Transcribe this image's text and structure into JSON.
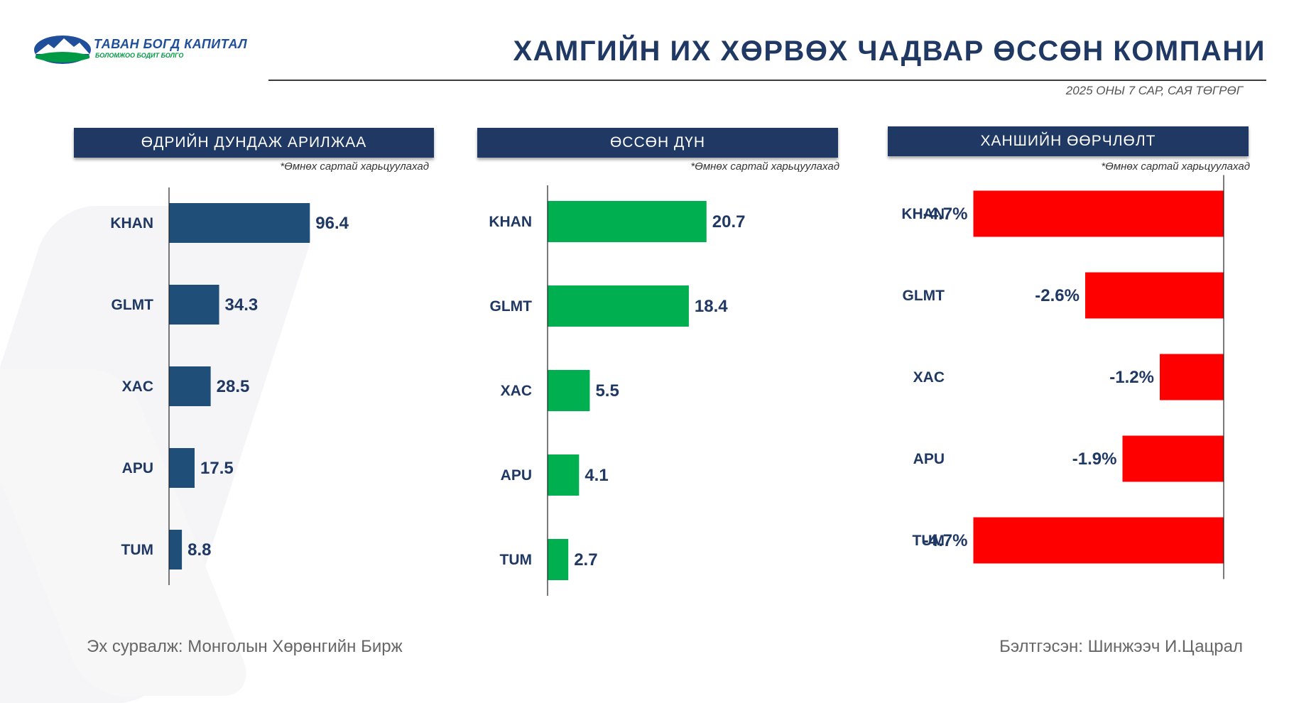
{
  "logo": {
    "name": "ТАВАН БОГД КАПИТАЛ",
    "tagline": "БОЛОМЖОО БОДИТ БОЛГО",
    "colors": {
      "blue": "#1f4e9a",
      "green": "#009a44"
    }
  },
  "title": "ХАМГИЙН ИХ ХӨРВӨХ ЧАДВАР ӨССӨН КОМПАНИ",
  "subtitle": "2025 ОНЫ 7 САР, САЯ ТӨГРӨГ",
  "panels": [
    {
      "header": "ӨДРИЙН ДУНДАЖ АРИЛЖАА",
      "note": "*Өмнөх сартай харьцуулахад"
    },
    {
      "header": "ӨССӨН ДҮН",
      "note": "*Өмнөх сартай харьцуулахад"
    },
    {
      "header": "ХАНШИЙН ӨӨРЧЛӨЛТ",
      "note": "*Өмнөх сартай харьцуулахад"
    }
  ],
  "chart_data": [
    {
      "type": "bar",
      "orientation": "horizontal",
      "categories": [
        "KHAN",
        "GLMT",
        "XAC",
        "APU",
        "TUM"
      ],
      "values": [
        96.4,
        34.3,
        28.5,
        17.5,
        8.8
      ],
      "labels": [
        "96.4",
        "34.3",
        "28.5",
        "17.5",
        "8.8"
      ],
      "color": "#1f4e79",
      "xlim": [
        0,
        175
      ]
    },
    {
      "type": "bar",
      "orientation": "horizontal",
      "categories": [
        "KHAN",
        "GLMT",
        "XAC",
        "APU",
        "TUM"
      ],
      "values": [
        20.7,
        18.4,
        5.5,
        4.1,
        2.7
      ],
      "labels": [
        "20.7",
        "18.4",
        "5.5",
        "4.1",
        "2.7"
      ],
      "color": "#00b050",
      "xlim": [
        0,
        37
      ]
    },
    {
      "type": "bar",
      "orientation": "horizontal",
      "categories": [
        "KHAN",
        "GLMT",
        "XAC",
        "APU",
        "TUM"
      ],
      "values": [
        -4.7,
        -2.6,
        -1.2,
        -1.9,
        -4.7
      ],
      "labels": [
        "-4.7%",
        "-2.6%",
        "-1.2%",
        "-1.9%",
        "-4.7%"
      ],
      "color": "#ff0000",
      "xlim": [
        -5.6,
        0
      ]
    }
  ],
  "footer": {
    "source": "Эх сурвалж: Монголын Хөрөнгийн Бирж",
    "prepared": "Бэлтгэсэн: Шинжээч И.Цацрал"
  }
}
